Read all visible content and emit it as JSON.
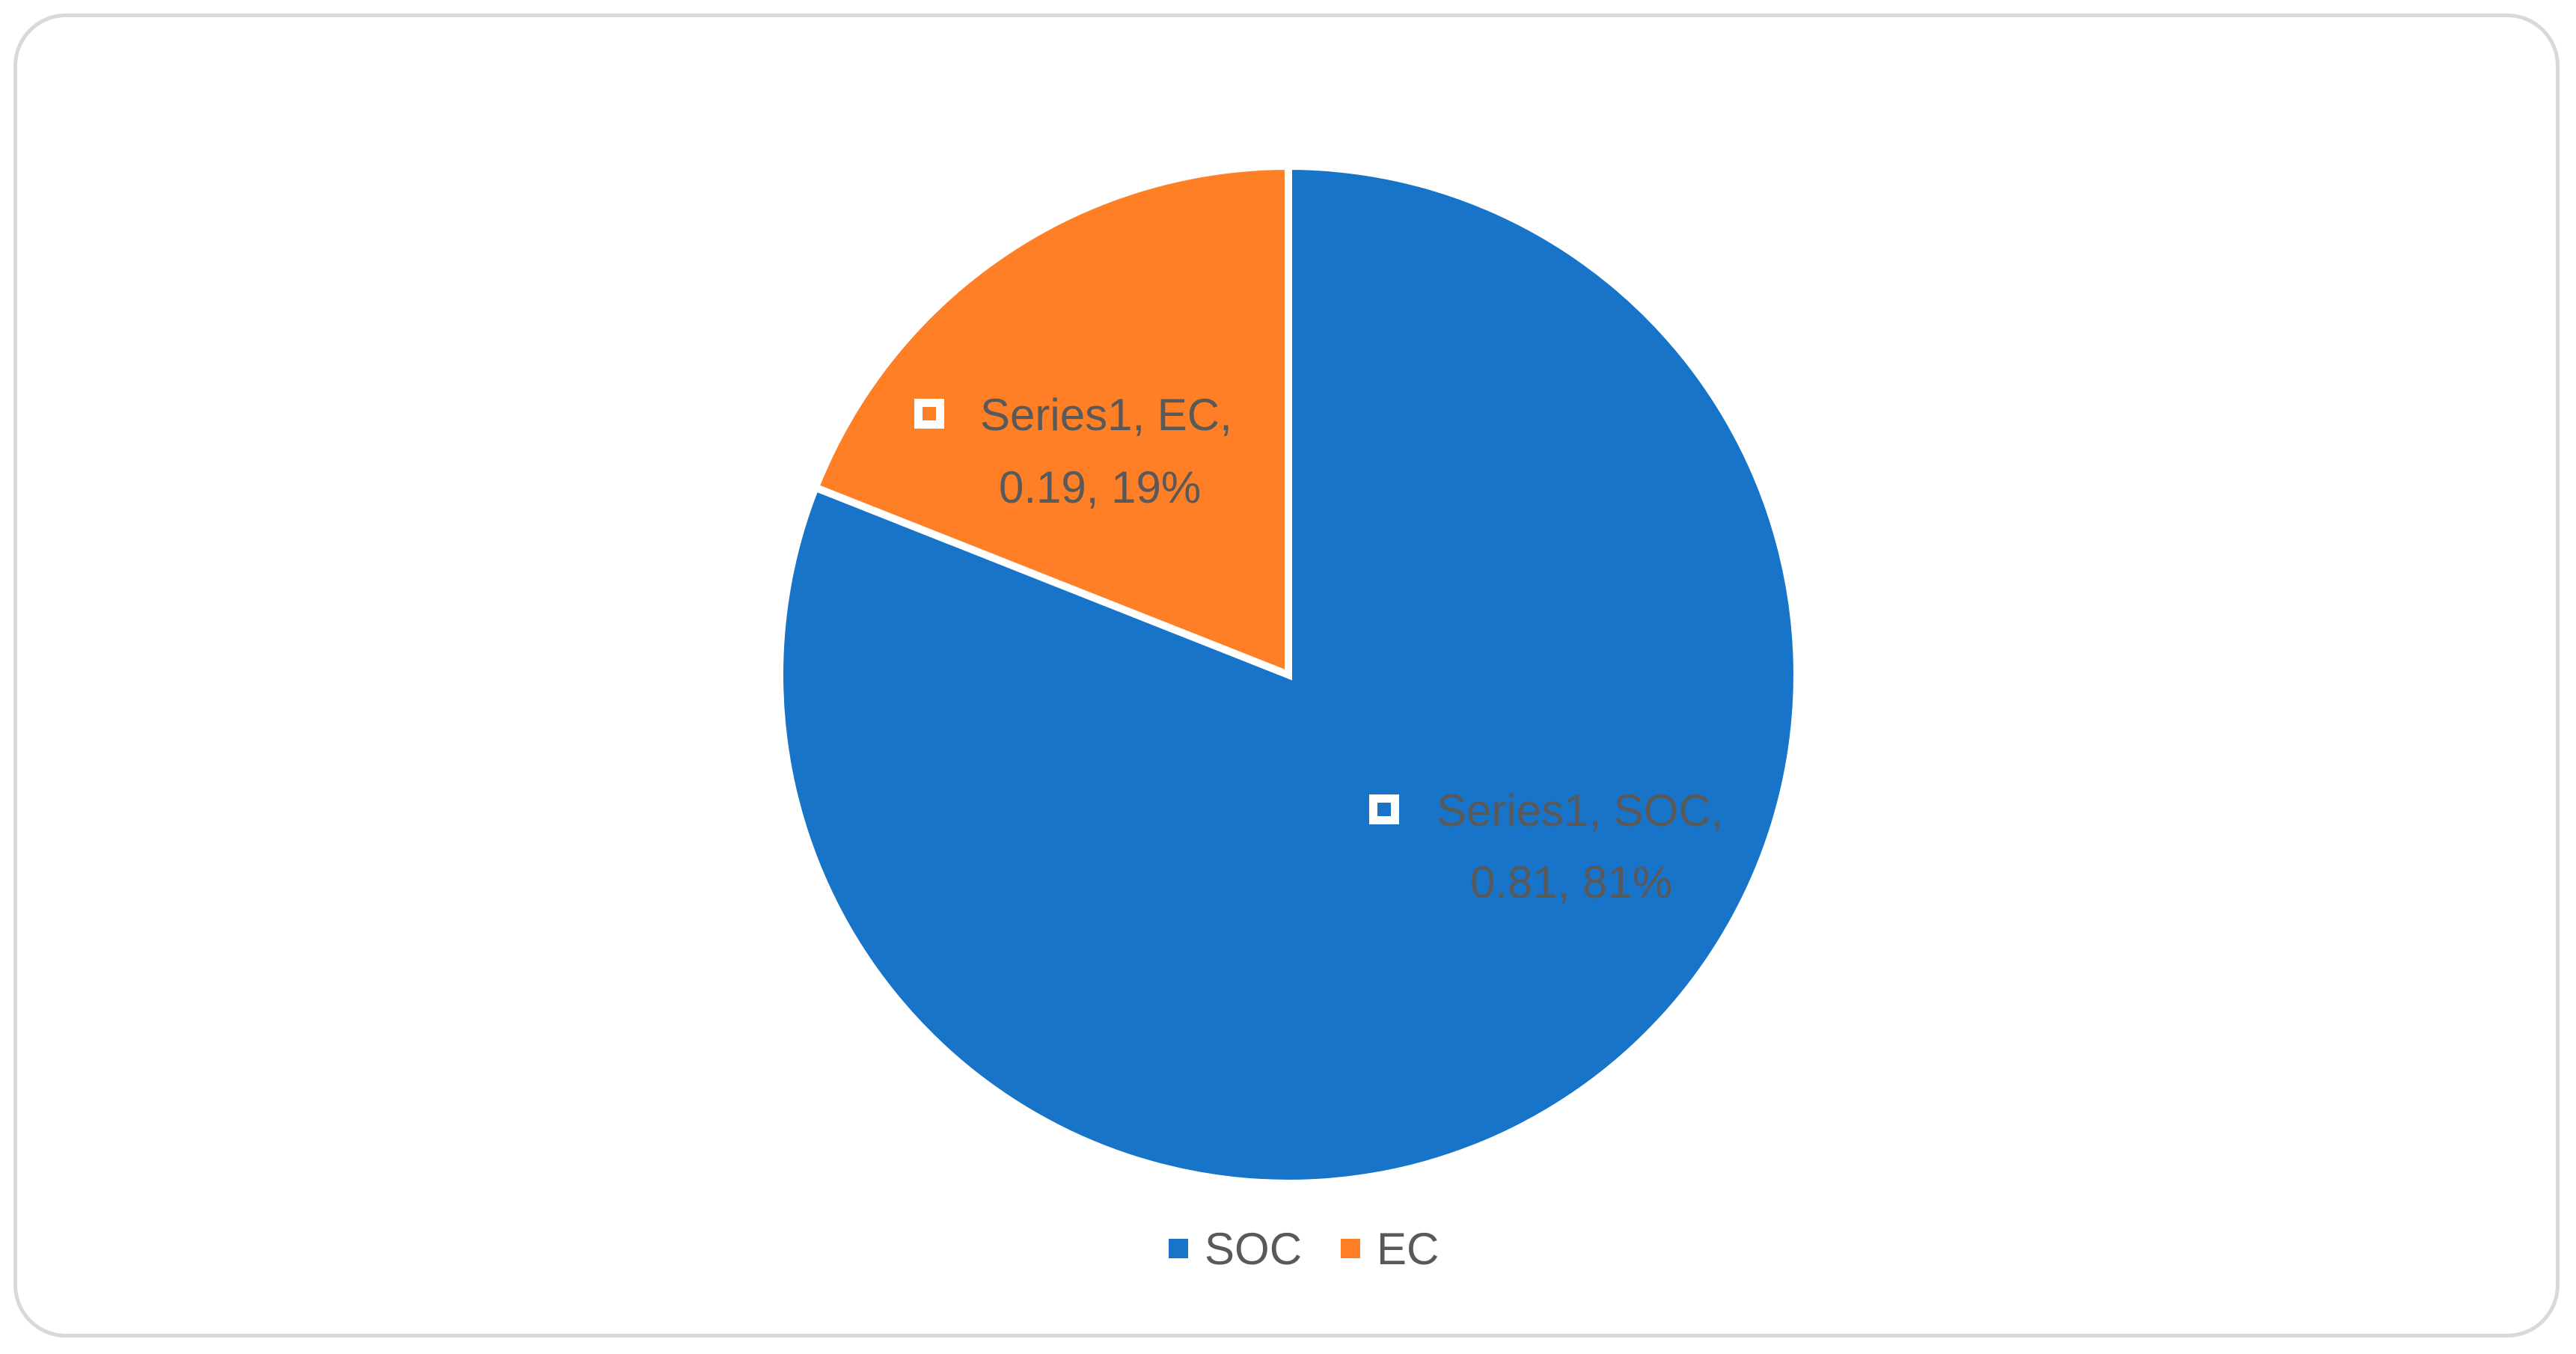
{
  "chart_data": {
    "type": "pie",
    "categories": [
      "SOC",
      "EC"
    ],
    "series": [
      {
        "name": "Series1",
        "values": [
          0.81,
          0.19
        ],
        "percent_labels": [
          "81%",
          "19%"
        ]
      }
    ],
    "data_labels": [
      {
        "line1": "Series1, SOC,",
        "line2": "0.81, 81%"
      },
      {
        "line1": "Series1, EC,",
        "line2": "0.19, 19%"
      }
    ],
    "colors": [
      "#1874C8",
      "#FE7F25"
    ],
    "legend": {
      "placement": "bottom",
      "entries": [
        "SOC",
        "EC"
      ]
    },
    "title": ""
  }
}
